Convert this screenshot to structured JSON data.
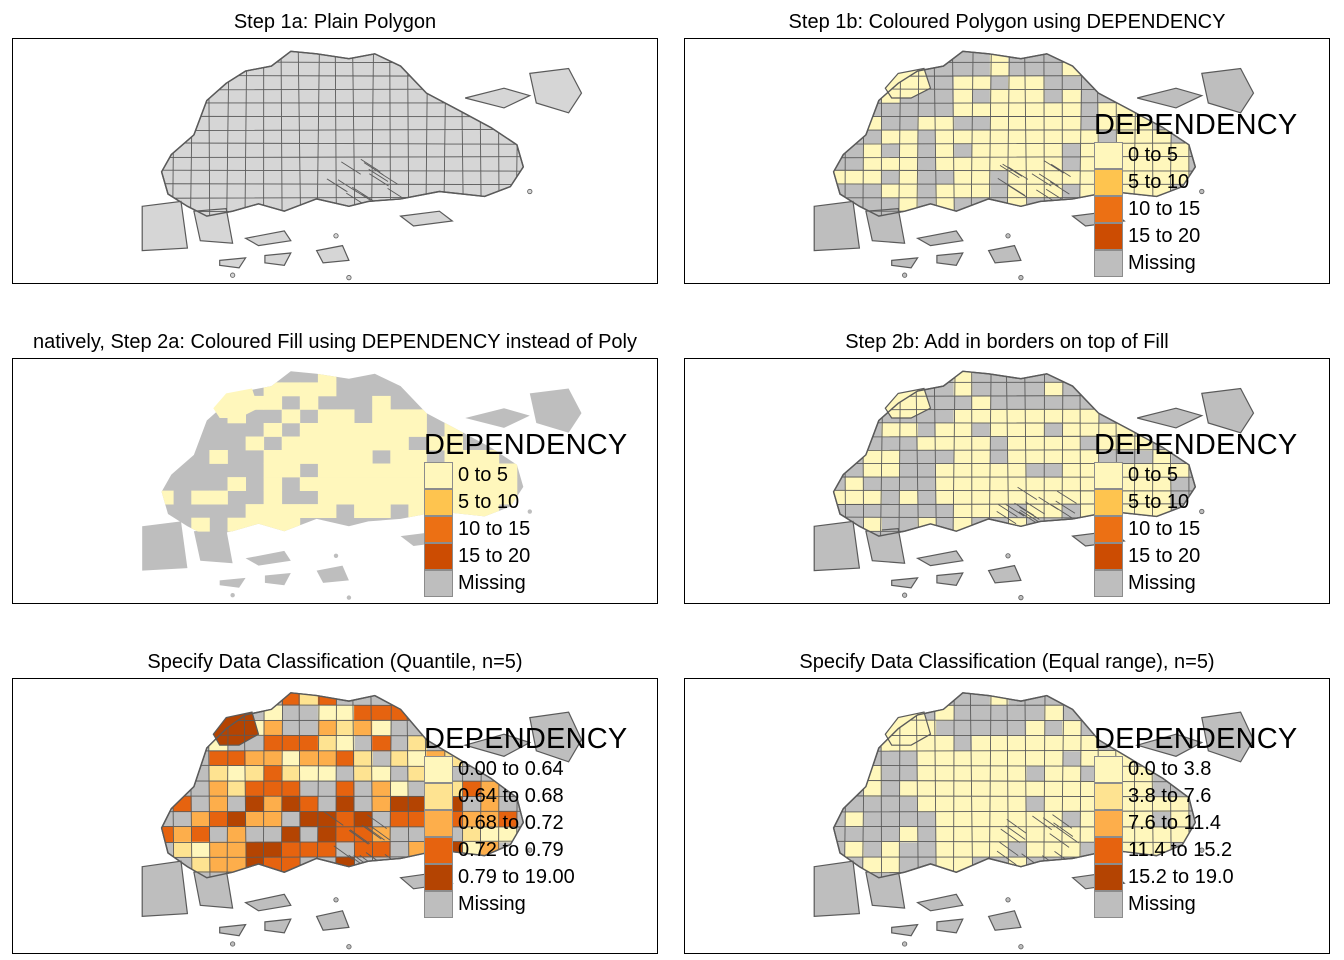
{
  "colors": {
    "land_grey": "#d6d6d6",
    "fill_grey": "#bebebe",
    "border": "#5a5a5a",
    "frame": "#000000"
  },
  "legend_title": "DEPENDENCY",
  "panels": [
    {
      "title": "Step 1a: Plain Polygon",
      "style": "plain",
      "legend": []
    },
    {
      "title": "Step 1b: Coloured Polygon using DEPENDENCY",
      "style": "coloured-borders",
      "legend": [
        {
          "label": "0 to 5",
          "color": "#fff7bc"
        },
        {
          "label": "5 to 10",
          "color": "#fec44f"
        },
        {
          "label": "10 to 15",
          "color": "#ec7014"
        },
        {
          "label": "15 to 20",
          "color": "#cc4c02"
        },
        {
          "label": "Missing",
          "color": "#bebebe"
        }
      ]
    },
    {
      "title": "natively, Step 2a: Coloured Fill using DEPENDENCY instead of Poly",
      "style": "fill-only",
      "legend": [
        {
          "label": "0 to 5",
          "color": "#fff7bc"
        },
        {
          "label": "5 to 10",
          "color": "#fec44f"
        },
        {
          "label": "10 to 15",
          "color": "#ec7014"
        },
        {
          "label": "15 to 20",
          "color": "#cc4c02"
        },
        {
          "label": "Missing",
          "color": "#bebebe"
        }
      ]
    },
    {
      "title": "Step 2b: Add in borders on top of Fill",
      "style": "fill-borders",
      "legend": [
        {
          "label": "0 to 5",
          "color": "#fff7bc"
        },
        {
          "label": "5 to 10",
          "color": "#fec44f"
        },
        {
          "label": "10 to 15",
          "color": "#ec7014"
        },
        {
          "label": "15 to 20",
          "color": "#cc4c02"
        },
        {
          "label": "Missing",
          "color": "#bebebe"
        }
      ]
    },
    {
      "title": "Specify Data Classification (Quantile, n=5)",
      "style": "quantile",
      "legend": [
        {
          "label": "0.00 to 0.64",
          "color": "#fff7bc"
        },
        {
          "label": "0.64 to 0.68",
          "color": "#fee391"
        },
        {
          "label": "0.68 to 0.72",
          "color": "#fdae4b"
        },
        {
          "label": "0.72 to 0.79",
          "color": "#e6630f"
        },
        {
          "label": "0.79 to 19.00",
          "color": "#b44402"
        },
        {
          "label": "Missing",
          "color": "#bebebe"
        }
      ]
    },
    {
      "title": "Specify Data Classification (Equal range), n=5)",
      "style": "equal",
      "legend": [
        {
          "label": "0.0 to 3.8",
          "color": "#fff7bc"
        },
        {
          "label": "3.8 to 7.6",
          "color": "#fee391"
        },
        {
          "label": "7.6 to 11.4",
          "color": "#fdae4b"
        },
        {
          "label": "11.4 to 15.2",
          "color": "#e6630f"
        },
        {
          "label": "15.2 to 19.0",
          "color": "#b44402"
        },
        {
          "label": "Missing",
          "color": "#bebebe"
        }
      ]
    }
  ]
}
